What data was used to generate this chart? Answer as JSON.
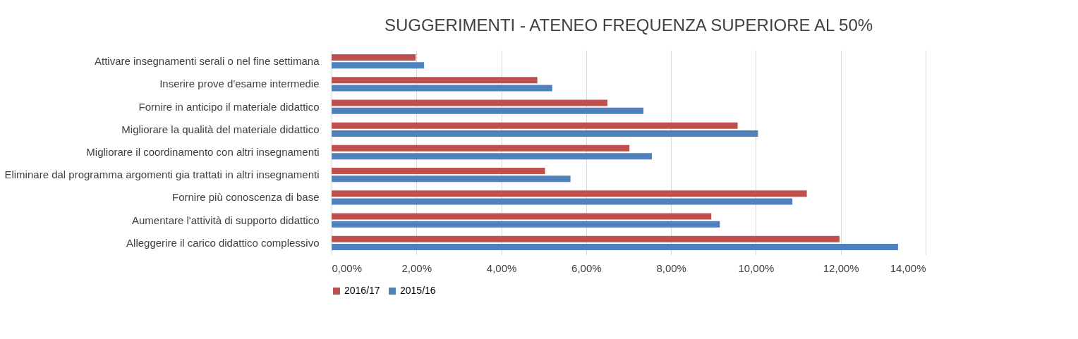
{
  "chart_data": {
    "type": "bar",
    "orientation": "horizontal",
    "title": "SUGGERIMENTI - ATENEO FREQUENZA SUPERIORE AL 50%",
    "categories": [
      "Attivare insegnamenti serali o nel fine settimana",
      "Inserire prove d'esame intermedie",
      "Fornire in anticipo il materiale didattico",
      "Migliorare la qualità del materiale didattico",
      "Migliorare il coordinamento con altri insegnamenti",
      "Eliminare dal programma argomenti gia trattati in altri insegnamenti",
      "Fornire più conoscenza di base",
      "Aumentare l'attività di supporto didattico",
      "Alleggerire il carico didattico complessivo"
    ],
    "series": [
      {
        "name": "2016/17",
        "color": "#c0504d",
        "values": [
          1.98,
          4.85,
          6.5,
          9.57,
          7.02,
          5.03,
          11.2,
          8.95,
          11.97
        ]
      },
      {
        "name": "2015/16",
        "color": "#4f81bd",
        "values": [
          2.18,
          5.2,
          7.35,
          10.05,
          7.55,
          5.63,
          10.86,
          9.15,
          13.35
        ]
      }
    ],
    "xlim": [
      0,
      14
    ],
    "xticks": [
      {
        "value": 0,
        "label": "0,00%"
      },
      {
        "value": 2,
        "label": "2,00%"
      },
      {
        "value": 4,
        "label": "4,00%"
      },
      {
        "value": 6,
        "label": "6,00%"
      },
      {
        "value": 8,
        "label": "8,00%"
      },
      {
        "value": 10,
        "label": "10,00%"
      },
      {
        "value": 12,
        "label": "12,00%"
      },
      {
        "value": 14,
        "label": "14,00%"
      }
    ],
    "grid": "x",
    "legend": "bottom"
  }
}
